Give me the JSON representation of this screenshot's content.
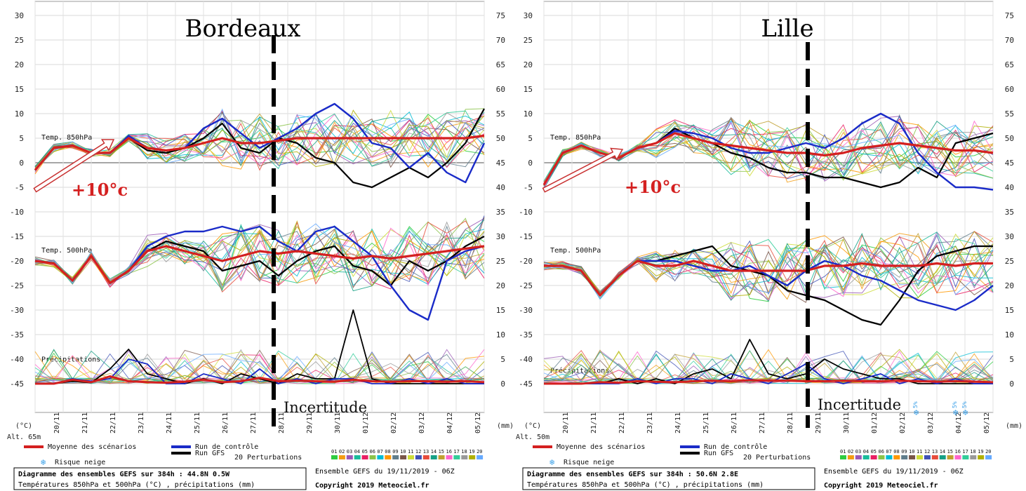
{
  "panels": [
    {
      "city": "Bordeaux",
      "altitude": "Alt. 65m",
      "footer": {
        "line1": "Diagramme des ensembles GEFS sur 384h : 44.8N 0.5W",
        "line2": "Températures 850hPa et 500hPa (°C) , précipitations (mm)",
        "run": "Ensemble GEFS du 19/11/2019 - 06Z",
        "copyright": "Copyright 2019 Meteociel.fr"
      },
      "annotation": "+10°c",
      "uncertainty": "Incertitude",
      "snow_marks": []
    },
    {
      "city": "Lille",
      "altitude": "Alt. 50m",
      "footer": {
        "line1": "Diagramme des ensembles GEFS sur 384h : 50.6N 2.8E",
        "line2": "Températures 850hPa et 500hPa (°C) , précipitations (mm)",
        "run": "Ensemble GEFS du 19/11/2019 - 06Z",
        "copyright": "Copyright 2019 Meteociel.fr"
      },
      "annotation": "+10°c",
      "uncertainty": "Incertitude",
      "snow_marks": [
        "5%",
        "5%",
        "5%"
      ]
    }
  ],
  "labels": {
    "t850": "Temp. 850hPa",
    "t500": "Temp. 500hPa",
    "precip": "Précipitations",
    "left_unit": "(°C)",
    "right_unit": "(mm)",
    "legend_mean": "Moyenne des scénarios",
    "legend_control": "Run de contrôle",
    "legend_gfs": "Run GFS",
    "legend_snow": "Risque neige",
    "legend_perturb": "20 Perturbations",
    "perturb_ids": [
      "01",
      "02",
      "03",
      "04",
      "05",
      "06",
      "07",
      "08",
      "09",
      "10",
      "11",
      "12",
      "13",
      "14",
      "15",
      "16",
      "17",
      "18",
      "19",
      "20"
    ]
  },
  "colors": {
    "mean": "#d42020",
    "control": "#1a2bc8",
    "gfs": "#000000",
    "annotation": "#d42020",
    "snow": "#3aa0e8",
    "perturbations": [
      "#2ecc40",
      "#f39c12",
      "#9b59b6",
      "#1abc9c",
      "#e91e63",
      "#8bc34a",
      "#00bcd4",
      "#ff9800",
      "#607d8b",
      "#795548",
      "#cddc39",
      "#3f51b5",
      "#e74c3c",
      "#16a085",
      "#c0a030",
      "#ff66cc",
      "#33cc99",
      "#999999",
      "#b0b000",
      "#66aaff"
    ]
  },
  "chart_data": [
    {
      "type": "line",
      "title": "Bordeaux",
      "x_ticks": [
        "20/11",
        "21/11",
        "22/11",
        "23/11",
        "24/11",
        "25/11",
        "26/11",
        "27/11",
        "28/11",
        "29/11",
        "30/11",
        "01/12",
        "02/12",
        "03/12",
        "04/12",
        "05/12"
      ],
      "y_left_ticks": [
        30,
        25,
        20,
        15,
        10,
        5,
        0,
        -5,
        -10,
        -15,
        -20,
        -25,
        -30,
        -35,
        -40,
        -45
      ],
      "y_right_ticks": [
        75,
        70,
        65,
        60,
        55,
        50,
        45,
        40,
        35,
        30,
        25,
        20,
        15,
        10,
        5,
        0
      ],
      "ylim_left": [
        -50,
        30
      ],
      "ylim_right": [
        -5,
        75
      ],
      "x_days": [
        0,
        16
      ],
      "t850_mean": [
        -1.5,
        3,
        3.5,
        2,
        2,
        5,
        3,
        2.5,
        3,
        4,
        5,
        4,
        4,
        4.5,
        5,
        5,
        5,
        5,
        5,
        5,
        5,
        5,
        5,
        5,
        5.5
      ],
      "t850_control": [
        -1.5,
        3,
        3.5,
        2,
        2,
        5.5,
        3,
        2.5,
        3,
        7,
        9,
        6,
        3,
        5,
        7,
        10,
        12,
        9,
        4,
        3,
        -1,
        2,
        -2,
        -4,
        4
      ],
      "t850_gfs": [
        -1.5,
        3,
        3.5,
        2,
        2,
        5,
        2.5,
        2,
        3,
        5,
        8,
        3,
        2,
        5,
        4,
        1,
        0,
        -4,
        -5,
        -3,
        -1,
        -3,
        0,
        4,
        11
      ],
      "t500_mean": [
        -20,
        -20.5,
        -24,
        -19,
        -24.5,
        -22,
        -18,
        -17,
        -18,
        -19,
        -20,
        -19,
        -18,
        -18.5,
        -18,
        -18.5,
        -19,
        -19.5,
        -19,
        -19.5,
        -19,
        -18.5,
        -18,
        -17.5,
        -17
      ],
      "t500_control": [
        -20,
        -20.5,
        -24,
        -19,
        -24.5,
        -22,
        -17,
        -15,
        -14,
        -14,
        -13,
        -14,
        -13,
        -16,
        -18,
        -14,
        -13,
        -16,
        -19,
        -25,
        -30,
        -32,
        -20,
        -18,
        -17
      ],
      "t500_gfs": [
        -20,
        -20.5,
        -24,
        -19,
        -24.5,
        -22,
        -18,
        -16,
        -17,
        -18,
        -22,
        -21,
        -20,
        -23,
        -20,
        -18,
        -17,
        -21,
        -22,
        -25,
        -20,
        -22,
        -20,
        -17,
        -15
      ],
      "precip_mean": [
        0,
        0,
        0.8,
        0.3,
        1.5,
        0.5,
        0.3,
        0.2,
        0.4,
        0.8,
        0.3,
        0.5,
        1.2,
        0.5,
        0.6,
        0.5,
        0.4,
        0.8,
        0.5,
        0.4,
        0.5,
        0.5,
        0.4,
        0.5,
        0.3
      ],
      "precip_gfs": [
        0,
        0,
        0.5,
        0.2,
        3,
        7,
        2,
        1,
        0,
        1,
        0,
        2,
        1,
        0,
        2,
        1,
        1,
        15,
        1,
        0,
        0,
        0,
        0,
        0,
        0
      ],
      "precip_control": [
        0,
        0,
        1,
        0.5,
        1,
        5,
        4,
        0,
        0,
        2,
        1,
        0,
        3,
        0,
        1,
        0,
        1,
        1,
        0,
        0,
        1,
        0,
        1,
        0,
        0
      ],
      "uncertainty_day": 8.5,
      "arrow_delta": 10
    },
    {
      "type": "line",
      "title": "Lille",
      "x_ticks": [
        "20/11",
        "21/11",
        "22/11",
        "23/11",
        "24/11",
        "25/11",
        "26/11",
        "27/11",
        "28/11",
        "29/11",
        "30/11",
        "01/12",
        "02/12",
        "03/12",
        "04/12",
        "05/12"
      ],
      "y_left_ticks": [
        30,
        25,
        20,
        15,
        10,
        5,
        0,
        -5,
        -10,
        -15,
        -20,
        -25,
        -30,
        -35,
        -40,
        -45
      ],
      "y_right_ticks": [
        75,
        70,
        65,
        60,
        55,
        50,
        45,
        40,
        35,
        30,
        25,
        20,
        15,
        10,
        5,
        0
      ],
      "ylim_left": [
        -50,
        30
      ],
      "ylim_right": [
        -5,
        75
      ],
      "x_days": [
        0,
        16
      ],
      "t850_mean": [
        -4.5,
        2,
        3.5,
        2,
        1,
        3,
        4,
        6,
        5,
        4,
        3.5,
        3,
        2.5,
        2,
        2,
        1.5,
        2,
        3,
        3.5,
        4,
        3.5,
        3,
        2.5,
        2.5,
        2
      ],
      "t850_control": [
        -4.5,
        2,
        3.5,
        2,
        1,
        3,
        4,
        6.5,
        6,
        5,
        3,
        2,
        2,
        3,
        4,
        3,
        5,
        8,
        10,
        8,
        2,
        -2,
        -5,
        -5,
        -5.5
      ],
      "t850_gfs": [
        -4.5,
        2,
        3.5,
        2,
        1,
        3,
        4,
        7,
        5,
        4,
        2,
        1,
        -1,
        -2,
        -2,
        -3,
        -3,
        -4,
        -5,
        -4,
        -1,
        -3,
        4,
        5,
        6
      ],
      "t500_mean": [
        -21,
        -21,
        -22,
        -27,
        -23,
        -20,
        -21,
        -21,
        -20,
        -21,
        -22,
        -22,
        -22,
        -22,
        -22,
        -21,
        -21,
        -20.5,
        -21,
        -21,
        -21,
        -20.5,
        -21,
        -20.5,
        -20.5
      ],
      "t500_control": [
        -21,
        -21,
        -22,
        -27,
        -23,
        -20,
        -20,
        -20,
        -21,
        -22,
        -22,
        -21,
        -23,
        -25,
        -22,
        -20,
        -21,
        -23,
        -24,
        -26,
        -28,
        -29,
        -30,
        -28,
        -25
      ],
      "t500_gfs": [
        -21,
        -21,
        -22,
        -27,
        -23,
        -20,
        -20,
        -19,
        -18,
        -17,
        -21,
        -22,
        -23,
        -26,
        -27,
        -28,
        -30,
        -32,
        -33,
        -28,
        -22,
        -19,
        -18,
        -17,
        -17
      ],
      "precip_mean": [
        0,
        0,
        0,
        0.3,
        0.2,
        0.5,
        0.4,
        0.3,
        0.5,
        0.6,
        0.5,
        0.7,
        0.6,
        0.6,
        0.5,
        0.5,
        0.6,
        0.5,
        0.5,
        0.6,
        0.5,
        0.4,
        0.5,
        0.4,
        0.3
      ],
      "precip_gfs": [
        0,
        0,
        0,
        0,
        1,
        0,
        1,
        0,
        2,
        3,
        1,
        9,
        2,
        1,
        2,
        5,
        3,
        2,
        1,
        1,
        0,
        0,
        0,
        0,
        0
      ],
      "precip_control": [
        0,
        0,
        0,
        0,
        0,
        1,
        0,
        1,
        1,
        0,
        2,
        1,
        0,
        2,
        4,
        1,
        0,
        1,
        2,
        0,
        1,
        0,
        1,
        0,
        0
      ],
      "uncertainty_day": 9.4,
      "arrow_delta": 10
    }
  ]
}
